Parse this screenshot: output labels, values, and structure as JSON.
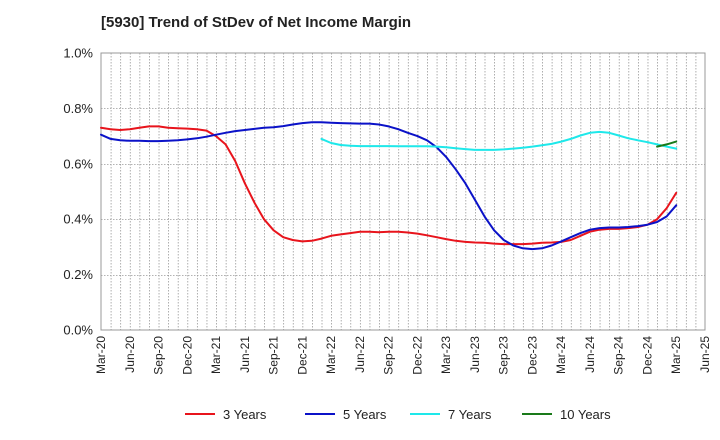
{
  "chart_data": {
    "type": "line",
    "title": "[5930]  Trend of StDev of Net Income Margin",
    "xlabel": "",
    "ylabel": "",
    "ylim": [
      0,
      1.0
    ],
    "y_ticks": [
      0.0,
      0.2,
      0.4,
      0.6,
      0.8,
      1.0
    ],
    "y_tick_labels": [
      "0.0%",
      "0.2%",
      "0.4%",
      "0.6%",
      "0.8%",
      "1.0%"
    ],
    "x_tick_labels": [
      "Mar-20",
      "Jun-20",
      "Sep-20",
      "Dec-20",
      "Mar-21",
      "Jun-21",
      "Sep-21",
      "Dec-21",
      "Mar-22",
      "Jun-22",
      "Sep-22",
      "Dec-22",
      "Mar-23",
      "Jun-23",
      "Sep-23",
      "Dec-23",
      "Mar-24",
      "Jun-24",
      "Sep-24",
      "Dec-24",
      "Mar-25",
      "Jun-25"
    ],
    "grid": true,
    "legend_position": "bottom",
    "series": [
      {
        "name": "3 Years",
        "color": "#e8141c",
        "x": [
          "Mar-20",
          "Apr-20",
          "May-20",
          "Jun-20",
          "Jul-20",
          "Aug-20",
          "Sep-20",
          "Oct-20",
          "Nov-20",
          "Dec-20",
          "Jan-21",
          "Feb-21",
          "Mar-21",
          "Apr-21",
          "May-21",
          "Jun-21",
          "Jul-21",
          "Aug-21",
          "Sep-21",
          "Oct-21",
          "Nov-21",
          "Dec-21",
          "Jan-22",
          "Feb-22",
          "Mar-22",
          "Apr-22",
          "May-22",
          "Jun-22",
          "Jul-22",
          "Aug-22",
          "Sep-22",
          "Oct-22",
          "Nov-22",
          "Dec-22",
          "Jan-23",
          "Feb-23",
          "Mar-23",
          "Apr-23",
          "May-23",
          "Jun-23",
          "Jul-23",
          "Aug-23",
          "Sep-23",
          "Oct-23",
          "Nov-23",
          "Dec-23",
          "Jan-24",
          "Feb-24",
          "Mar-24",
          "Apr-24",
          "May-24",
          "Jun-24",
          "Jul-24",
          "Aug-24",
          "Sep-24",
          "Oct-24",
          "Nov-24",
          "Dec-24",
          "Jan-25",
          "Feb-25",
          "Mar-25"
        ],
        "values": [
          0.73,
          0.725,
          0.722,
          0.725,
          0.73,
          0.735,
          0.735,
          0.73,
          0.728,
          0.727,
          0.725,
          0.72,
          0.7,
          0.67,
          0.61,
          0.53,
          0.46,
          0.4,
          0.36,
          0.335,
          0.325,
          0.32,
          0.322,
          0.33,
          0.34,
          0.345,
          0.35,
          0.355,
          0.355,
          0.353,
          0.355,
          0.355,
          0.352,
          0.348,
          0.342,
          0.335,
          0.328,
          0.322,
          0.318,
          0.316,
          0.315,
          0.312,
          0.31,
          0.31,
          0.31,
          0.312,
          0.315,
          0.316,
          0.318,
          0.325,
          0.34,
          0.355,
          0.362,
          0.365,
          0.365,
          0.368,
          0.372,
          0.38,
          0.4,
          0.44,
          0.495
        ]
      },
      {
        "name": "5 Years",
        "color": "#0b12c8",
        "x": [
          "Mar-20",
          "Apr-20",
          "May-20",
          "Jun-20",
          "Jul-20",
          "Aug-20",
          "Sep-20",
          "Oct-20",
          "Nov-20",
          "Dec-20",
          "Jan-21",
          "Feb-21",
          "Mar-21",
          "Apr-21",
          "May-21",
          "Jun-21",
          "Jul-21",
          "Aug-21",
          "Sep-21",
          "Oct-21",
          "Nov-21",
          "Dec-21",
          "Jan-22",
          "Feb-22",
          "Mar-22",
          "Apr-22",
          "May-22",
          "Jun-22",
          "Jul-22",
          "Aug-22",
          "Sep-22",
          "Oct-22",
          "Nov-22",
          "Dec-22",
          "Jan-23",
          "Feb-23",
          "Mar-23",
          "Apr-23",
          "May-23",
          "Jun-23",
          "Jul-23",
          "Aug-23",
          "Sep-23",
          "Oct-23",
          "Nov-23",
          "Dec-23",
          "Jan-24",
          "Feb-24",
          "Mar-24",
          "Apr-24",
          "May-24",
          "Jun-24",
          "Jul-24",
          "Aug-24",
          "Sep-24",
          "Oct-24",
          "Nov-24",
          "Dec-24",
          "Jan-25",
          "Feb-25",
          "Mar-25"
        ],
        "values": [
          0.705,
          0.69,
          0.685,
          0.683,
          0.683,
          0.682,
          0.682,
          0.683,
          0.685,
          0.688,
          0.692,
          0.698,
          0.705,
          0.712,
          0.718,
          0.722,
          0.726,
          0.73,
          0.732,
          0.736,
          0.742,
          0.747,
          0.75,
          0.75,
          0.748,
          0.747,
          0.746,
          0.745,
          0.745,
          0.742,
          0.735,
          0.725,
          0.712,
          0.7,
          0.685,
          0.66,
          0.625,
          0.58,
          0.53,
          0.47,
          0.41,
          0.36,
          0.325,
          0.305,
          0.295,
          0.292,
          0.295,
          0.305,
          0.32,
          0.335,
          0.35,
          0.362,
          0.368,
          0.37,
          0.37,
          0.372,
          0.375,
          0.38,
          0.39,
          0.41,
          0.45
        ]
      },
      {
        "name": "7 Years",
        "color": "#1ee8ea",
        "x": [
          "Feb-22",
          "Mar-22",
          "Apr-22",
          "May-22",
          "Jun-22",
          "Jul-22",
          "Aug-22",
          "Sep-22",
          "Oct-22",
          "Nov-22",
          "Dec-22",
          "Jan-23",
          "Feb-23",
          "Mar-23",
          "Apr-23",
          "May-23",
          "Jun-23",
          "Jul-23",
          "Aug-23",
          "Sep-23",
          "Oct-23",
          "Nov-23",
          "Dec-23",
          "Jan-24",
          "Feb-24",
          "Mar-24",
          "Apr-24",
          "May-24",
          "Jun-24",
          "Jul-24",
          "Aug-24",
          "Sep-24",
          "Oct-24",
          "Nov-24",
          "Dec-24",
          "Jan-25",
          "Feb-25",
          "Mar-25"
        ],
        "values": [
          0.69,
          0.675,
          0.668,
          0.665,
          0.664,
          0.664,
          0.664,
          0.664,
          0.663,
          0.663,
          0.663,
          0.663,
          0.662,
          0.66,
          0.656,
          0.653,
          0.65,
          0.65,
          0.65,
          0.652,
          0.655,
          0.658,
          0.662,
          0.667,
          0.672,
          0.68,
          0.69,
          0.702,
          0.712,
          0.715,
          0.712,
          0.702,
          0.692,
          0.685,
          0.678,
          0.67,
          0.662,
          0.655
        ]
      },
      {
        "name": "10 Years",
        "color": "#1a7a1a",
        "x": [
          "Jan-25",
          "Feb-25",
          "Mar-25"
        ],
        "values": [
          0.662,
          0.67,
          0.68
        ]
      }
    ]
  }
}
